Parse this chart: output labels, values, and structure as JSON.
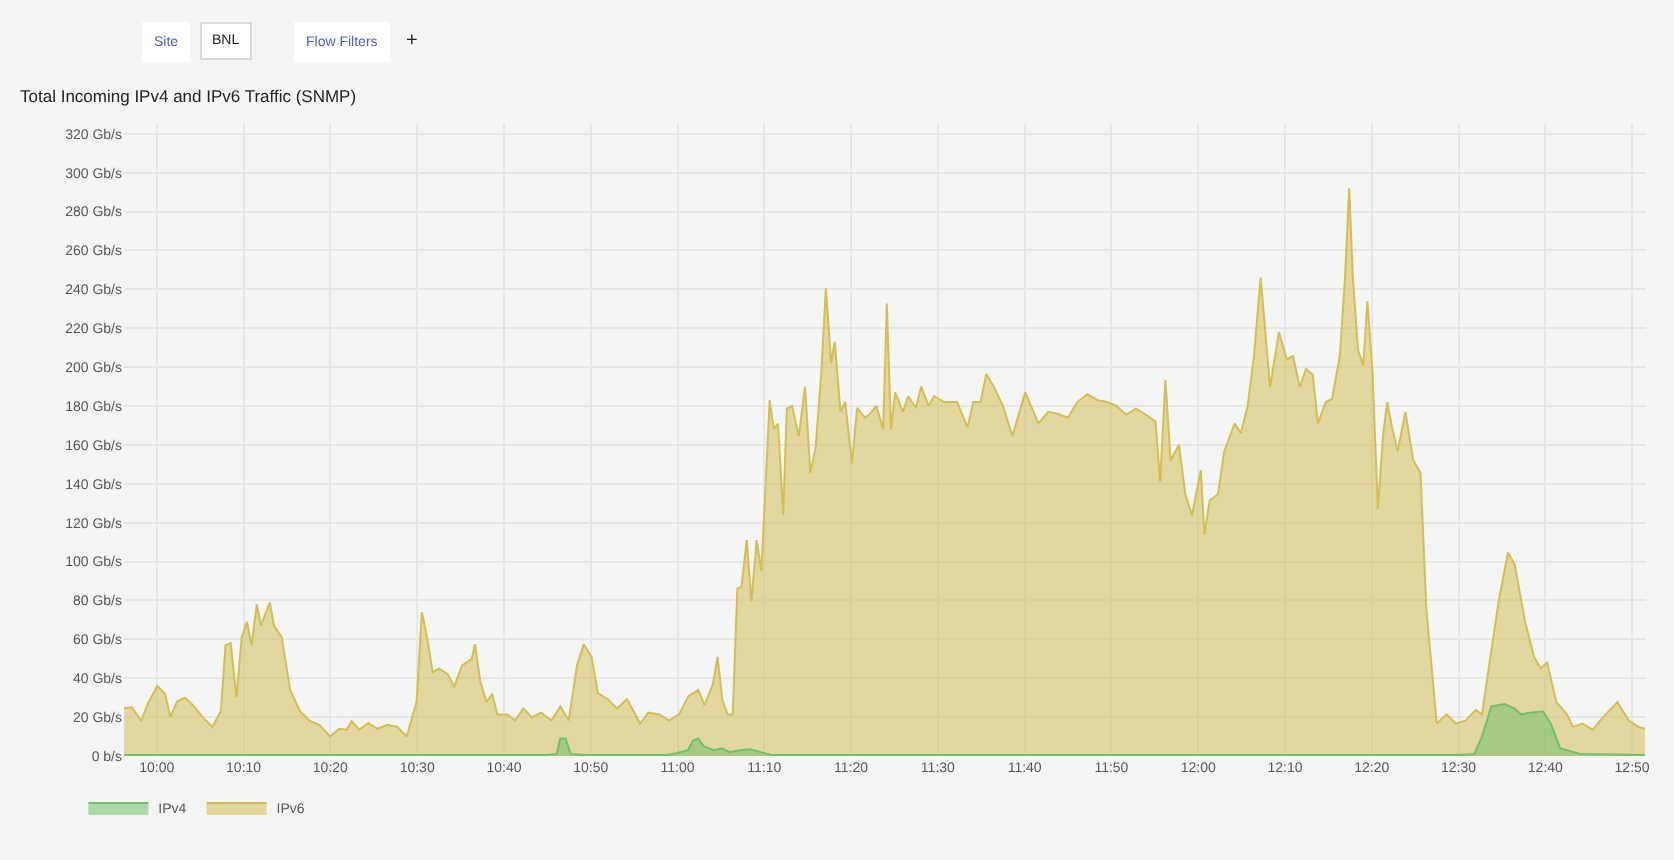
{
  "chart_data": {
    "type": "area",
    "title": "Total Incoming IPv4 and IPv6 Traffic (SNMP)",
    "annotations": [
      "Site",
      "BNL",
      "Flow Filters",
      "+"
    ],
    "xlim": [
      9.937,
      12.86
    ],
    "ylim": [
      0,
      325
    ],
    "xticks": [
      {
        "value": 10,
        "label": "10:00"
      },
      {
        "value": 10.1667,
        "label": "10:10"
      },
      {
        "value": 10.3333,
        "label": "10:20"
      },
      {
        "value": 10.5,
        "label": "10:30"
      },
      {
        "value": 10.6667,
        "label": "10:40"
      },
      {
        "value": 10.8333,
        "label": "10:50"
      },
      {
        "value": 11,
        "label": "11:00"
      },
      {
        "value": 11.1667,
        "label": "11:10"
      },
      {
        "value": 11.3333,
        "label": "11:20"
      },
      {
        "value": 11.5,
        "label": "11:30"
      },
      {
        "value": 11.6667,
        "label": "11:40"
      },
      {
        "value": 11.8333,
        "label": "11:50"
      },
      {
        "value": 12,
        "label": "12:00"
      },
      {
        "value": 12.1667,
        "label": "12:10"
      },
      {
        "value": 12.3333,
        "label": "12:20"
      },
      {
        "value": 12.5,
        "label": "12:30"
      },
      {
        "value": 12.6667,
        "label": "12:40"
      },
      {
        "value": 12.8333,
        "label": "12:50"
      }
    ],
    "yticks": [
      {
        "value": 0,
        "label": "0 b/s"
      },
      {
        "value": 20,
        "label": "20 Gb/s"
      },
      {
        "value": 40,
        "label": "40 Gb/s"
      },
      {
        "value": 60,
        "label": "60 Gb/s"
      },
      {
        "value": 80,
        "label": "80 Gb/s"
      },
      {
        "value": 100,
        "label": "100 Gb/s"
      },
      {
        "value": 120,
        "label": "120 Gb/s"
      },
      {
        "value": 140,
        "label": "140 Gb/s"
      },
      {
        "value": 160,
        "label": "160 Gb/s"
      },
      {
        "value": 180,
        "label": "180 Gb/s"
      },
      {
        "value": 200,
        "label": "200 Gb/s"
      },
      {
        "value": 220,
        "label": "220 Gb/s"
      },
      {
        "value": 240,
        "label": "240 Gb/s"
      },
      {
        "value": 260,
        "label": "260 Gb/s"
      },
      {
        "value": 280,
        "label": "280 Gb/s"
      },
      {
        "value": 300,
        "label": "300 Gb/s"
      },
      {
        "value": 320,
        "label": "320 Gb/s"
      }
    ],
    "grid": true,
    "legend": "bottom left",
    "marker": "none",
    "line_style": "solid",
    "series": [
      {
        "name": "IPv4",
        "color": "#73bf69",
        "x": [
          9.937,
          10.75,
          10.768,
          10.775,
          10.785,
          10.795,
          10.82,
          10.98,
          11.0,
          11.02,
          11.03,
          11.04,
          11.05,
          11.07,
          11.085,
          11.1,
          11.12,
          11.14,
          11.16,
          11.18,
          12.5,
          12.53,
          12.545,
          12.563,
          12.588,
          12.607,
          12.62,
          12.638,
          12.662,
          12.677,
          12.695,
          12.733,
          12.858
        ],
        "values": [
          0.5,
          0.5,
          1,
          9,
          9,
          1,
          0.5,
          0.5,
          1.5,
          3,
          8,
          9,
          5,
          3,
          4,
          2,
          3,
          3.5,
          2,
          0.5,
          0.5,
          1,
          10,
          25.5,
          26.7,
          24.5,
          21.4,
          22.3,
          23,
          16.7,
          4,
          1,
          0.5
        ]
      },
      {
        "name": "IPv6",
        "color": "#d4bd55",
        "x": [
          9.937,
          9.952,
          9.97,
          9.983,
          10.001,
          10.016,
          10.026,
          10.039,
          10.054,
          10.07,
          10.088,
          10.107,
          10.123,
          10.132,
          10.142,
          10.153,
          10.163,
          10.173,
          10.182,
          10.192,
          10.2,
          10.217,
          10.225,
          10.24,
          10.256,
          10.275,
          10.294,
          10.312,
          10.333,
          10.35,
          10.365,
          10.374,
          10.389,
          10.406,
          10.424,
          10.443,
          10.462,
          10.48,
          10.499,
          10.509,
          10.519,
          10.53,
          10.542,
          10.559,
          10.571,
          10.586,
          10.605,
          10.611,
          10.621,
          10.633,
          10.644,
          10.654,
          10.673,
          10.688,
          10.704,
          10.72,
          10.738,
          10.758,
          10.775,
          10.791,
          10.807,
          10.82,
          10.835,
          10.847,
          10.866,
          10.884,
          10.903,
          10.928,
          10.944,
          10.965,
          10.984,
          11.003,
          11.021,
          11.04,
          11.052,
          11.068,
          11.077,
          11.086,
          11.096,
          11.106,
          11.115,
          11.123,
          11.133,
          11.142,
          11.152,
          11.161,
          11.168,
          11.177,
          11.185,
          11.193,
          11.203,
          11.21,
          11.22,
          11.233,
          11.245,
          11.255,
          11.265,
          11.276,
          11.285,
          11.295,
          11.302,
          11.313,
          11.322,
          11.335,
          11.345,
          11.36,
          11.37,
          11.382,
          11.395,
          11.402,
          11.41,
          11.418,
          11.433,
          11.443,
          11.458,
          11.468,
          11.482,
          11.493,
          11.512,
          11.537,
          11.557,
          11.568,
          11.582,
          11.593,
          11.608,
          11.625,
          11.643,
          11.668,
          11.693,
          11.712,
          11.73,
          11.75,
          11.768,
          11.787,
          11.807,
          11.825,
          11.843,
          11.862,
          11.88,
          11.9,
          11.918,
          11.927,
          11.937,
          11.947,
          11.963,
          11.975,
          11.988,
          12.005,
          12.012,
          12.022,
          12.038,
          12.05,
          12.07,
          12.082,
          12.095,
          12.107,
          12.12,
          12.138,
          12.155,
          12.17,
          12.182,
          12.195,
          12.207,
          12.22,
          12.23,
          12.245,
          12.257,
          12.272,
          12.282,
          12.29,
          12.297,
          12.307,
          12.317,
          12.325,
          12.335,
          12.345,
          12.355,
          12.363,
          12.373,
          12.383,
          12.398,
          12.413,
          12.427,
          12.438,
          12.458,
          12.477,
          12.495,
          12.513,
          12.533,
          12.545,
          12.558,
          12.577,
          12.595,
          12.608,
          12.627,
          12.645,
          12.658,
          12.67,
          12.688,
          12.708,
          12.72,
          12.738,
          12.758,
          12.777,
          12.805,
          12.827,
          12.845,
          12.858
        ],
        "values": [
          24.5,
          25,
          18,
          27,
          36,
          32,
          20,
          28,
          30,
          26,
          20,
          15,
          23,
          57,
          58,
          30,
          61,
          69,
          57,
          78,
          67,
          79,
          67,
          61,
          34,
          23,
          18,
          16,
          10,
          14,
          13.5,
          18,
          13.5,
          17,
          14,
          16,
          15,
          10,
          28,
          74,
          61,
          43,
          45,
          42,
          35.5,
          46.5,
          50,
          57.5,
          38.7,
          27.7,
          32,
          21.4,
          21.4,
          18.2,
          24.5,
          19.8,
          22.3,
          18.2,
          25.5,
          18.2,
          46.5,
          57.5,
          51,
          32.4,
          29.2,
          24.5,
          29.2,
          16.7,
          22.3,
          21.4,
          18.2,
          21.4,
          30.8,
          34,
          26,
          37,
          51,
          29,
          21.4,
          21.4,
          86,
          87,
          111,
          79.5,
          111,
          95,
          133,
          183,
          168,
          171,
          124,
          178.6,
          180,
          164.5,
          190,
          145.6,
          158,
          196,
          240.6,
          202,
          213,
          177,
          182,
          150.6,
          179,
          174,
          176,
          180,
          168,
          232.7,
          168,
          187,
          177,
          185,
          179,
          190,
          180,
          185,
          182,
          182,
          169,
          182,
          182,
          196.5,
          189.6,
          180,
          164.5,
          187,
          171,
          177,
          176,
          174,
          182,
          186,
          183,
          182,
          180,
          175.5,
          178.6,
          175.5,
          172,
          141,
          193.4,
          152,
          160,
          135,
          123.7,
          147,
          114,
          131.4,
          134.6,
          156.7,
          171,
          166,
          180,
          205.7,
          246,
          189.6,
          218,
          204,
          205.7,
          189.6,
          199,
          196,
          171,
          182,
          183.6,
          205.7,
          246,
          292,
          246,
          208.8,
          201,
          234,
          196,
          127,
          164.5,
          182,
          168,
          156.7,
          177,
          152,
          145.6,
          76.4,
          16.7,
          21.4,
          16.7,
          18.2,
          23.6,
          21.4,
          45,
          79.6,
          104.7,
          98.4,
          70,
          51,
          45,
          48,
          27.7,
          21.4,
          15,
          16.7,
          13.5,
          19.8,
          27.7,
          18.2,
          15,
          14
        ]
      }
    ]
  }
}
